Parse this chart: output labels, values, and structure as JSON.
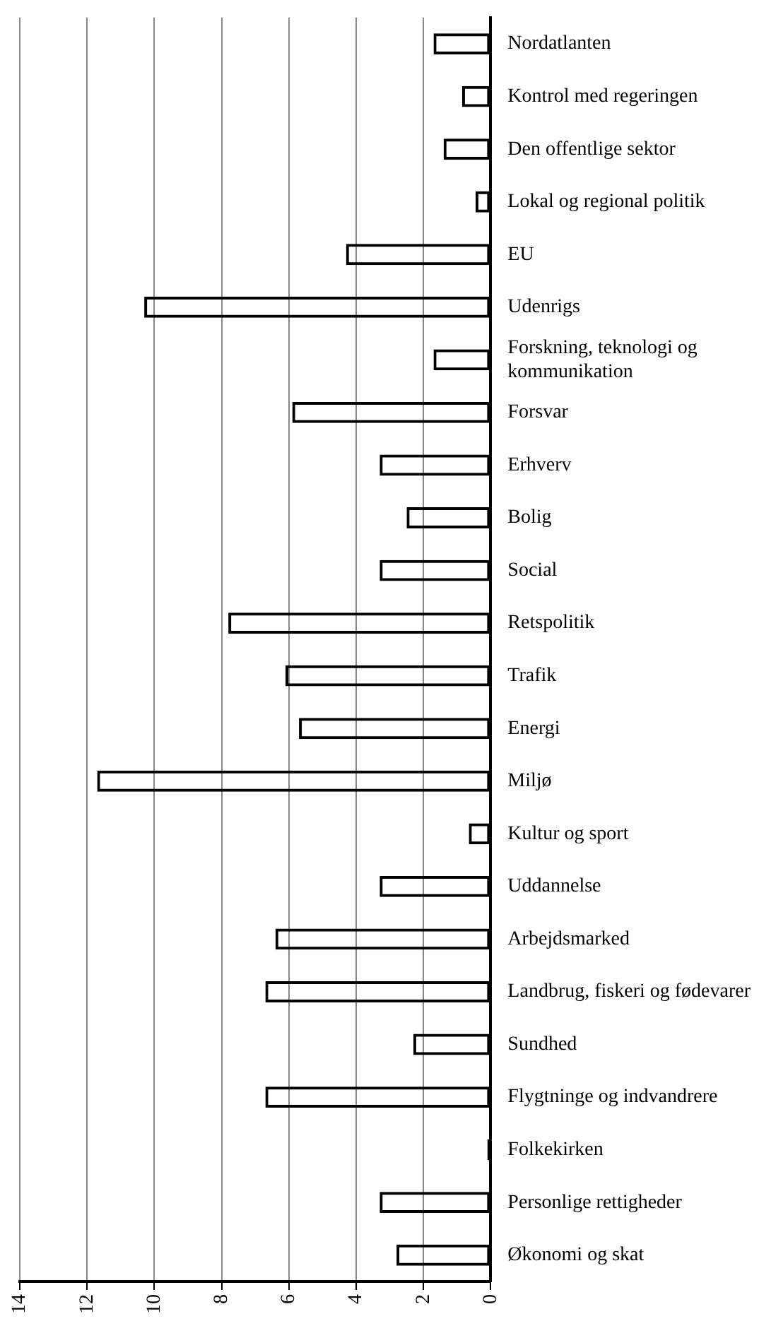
{
  "chart_data": {
    "type": "bar",
    "orientation": "horizontal",
    "categories": [
      "Nordatlanten",
      "Kontrol med regeringen",
      "Den offentlige sektor",
      "Lokal og regional politik",
      "EU",
      "Udenrigs",
      "Forskning, teknologi og kommunikation",
      "Forsvar",
      "Erhverv",
      "Bolig",
      "Social",
      "Retspolitik",
      "Trafik",
      "Energi",
      "Miljø",
      "Kultur og sport",
      "Uddannelse",
      "Arbejdsmarked",
      "Landbrug, fiskeri og fødevarer",
      "Sundhed",
      "Flygtninge og indvandrere",
      "Folkekirken",
      "Personlige rettigheder",
      "Økonomi og skat"
    ],
    "values": [
      1.7,
      0.85,
      1.4,
      0.45,
      4.3,
      10.3,
      1.7,
      5.9,
      3.3,
      2.5,
      3.3,
      7.8,
      6.1,
      5.7,
      11.7,
      0.65,
      3.3,
      6.4,
      6.7,
      2.3,
      6.7,
      0.1,
      3.3,
      2.8
    ],
    "color": "#000000",
    "xlim": [
      14,
      0
    ],
    "xticks": [
      14,
      12,
      10,
      8,
      6,
      4,
      2,
      0
    ],
    "grid": "x"
  }
}
